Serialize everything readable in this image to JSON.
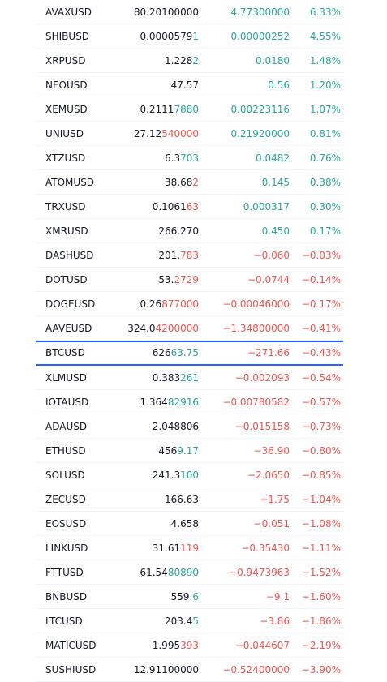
{
  "colors": {
    "up": "#26a69a",
    "down": "#ef5350",
    "selected_border": "#2962ff",
    "text": "#131722"
  },
  "selected_symbol": "BTCUSD",
  "rows": [
    {
      "symbol": "AVAXUSD",
      "last_base": "80.20100000",
      "last_hl": "",
      "last_dir": "",
      "change": "4.77300000",
      "change_pct": "6.33%",
      "dir": "pos"
    },
    {
      "symbol": "SHIBUSD",
      "last_base": "0.0000579",
      "last_hl": "1",
      "last_dir": "pos",
      "change": "0.00000252",
      "change_pct": "4.55%",
      "dir": "pos"
    },
    {
      "symbol": "XRPUSD",
      "last_base": "1.228",
      "last_hl": "2",
      "last_dir": "pos",
      "change": "0.0180",
      "change_pct": "1.48%",
      "dir": "pos"
    },
    {
      "symbol": "NEOUSD",
      "last_base": "47.57",
      "last_hl": "",
      "last_dir": "",
      "change": "0.56",
      "change_pct": "1.20%",
      "dir": "pos"
    },
    {
      "symbol": "XEMUSD",
      "last_base": "0.2111",
      "last_hl": "7880",
      "last_dir": "pos",
      "change": "0.00223116",
      "change_pct": "1.07%",
      "dir": "pos"
    },
    {
      "symbol": "UNIUSD",
      "last_base": "27.12",
      "last_hl": "540000",
      "last_dir": "neg",
      "change": "0.21920000",
      "change_pct": "0.81%",
      "dir": "pos"
    },
    {
      "symbol": "XTZUSD",
      "last_base": "6.3",
      "last_hl": "703",
      "last_dir": "pos",
      "change": "0.0482",
      "change_pct": "0.76%",
      "dir": "pos"
    },
    {
      "symbol": "ATOMUSD",
      "last_base": "38.68",
      "last_hl": "2",
      "last_dir": "neg",
      "change": "0.145",
      "change_pct": "0.38%",
      "dir": "pos"
    },
    {
      "symbol": "TRXUSD",
      "last_base": "0.1061",
      "last_hl": "63",
      "last_dir": "neg",
      "change": "0.000317",
      "change_pct": "0.30%",
      "dir": "pos"
    },
    {
      "symbol": "XMRUSD",
      "last_base": "266.270",
      "last_hl": "",
      "last_dir": "",
      "change": "0.450",
      "change_pct": "0.17%",
      "dir": "pos"
    },
    {
      "symbol": "DASHUSD",
      "last_base": "201.",
      "last_hl": "783",
      "last_dir": "neg",
      "change": "−0.060",
      "change_pct": "−0.03%",
      "dir": "neg"
    },
    {
      "symbol": "DOTUSD",
      "last_base": "53.",
      "last_hl": "2729",
      "last_dir": "neg",
      "change": "−0.0744",
      "change_pct": "−0.14%",
      "dir": "neg"
    },
    {
      "symbol": "DOGEUSD",
      "last_base": "0.26",
      "last_hl": "877000",
      "last_dir": "neg",
      "change": "−0.00046000",
      "change_pct": "−0.17%",
      "dir": "neg"
    },
    {
      "symbol": "AAVEUSD",
      "last_base": "324.0",
      "last_hl": "4200000",
      "last_dir": "neg",
      "change": "−1.34800000",
      "change_pct": "−0.41%",
      "dir": "neg"
    },
    {
      "symbol": "BTCUSD",
      "last_base": "626",
      "last_hl": "63.75",
      "last_dir": "pos",
      "change": "−271.66",
      "change_pct": "−0.43%",
      "dir": "neg",
      "selected": true
    },
    {
      "symbol": "XLMUSD",
      "last_base": "0.383",
      "last_hl": "261",
      "last_dir": "pos",
      "change": "−0.002093",
      "change_pct": "−0.54%",
      "dir": "neg"
    },
    {
      "symbol": "IOTAUSD",
      "last_base": "1.364",
      "last_hl": "82916",
      "last_dir": "pos",
      "change": "−0.00780582",
      "change_pct": "−0.57%",
      "dir": "neg"
    },
    {
      "symbol": "ADAUSD",
      "last_base": "2.048806",
      "last_hl": "",
      "last_dir": "",
      "change": "−0.015158",
      "change_pct": "−0.73%",
      "dir": "neg"
    },
    {
      "symbol": "ETHUSD",
      "last_base": "456",
      "last_hl": "9.17",
      "last_dir": "pos",
      "change": "−36.90",
      "change_pct": "−0.80%",
      "dir": "neg"
    },
    {
      "symbol": "SOLUSD",
      "last_base": "241.3",
      "last_hl": "100",
      "last_dir": "pos",
      "change": "−2.0650",
      "change_pct": "−0.85%",
      "dir": "neg"
    },
    {
      "symbol": "ZECUSD",
      "last_base": "166.63",
      "last_hl": "",
      "last_dir": "",
      "change": "−1.75",
      "change_pct": "−1.04%",
      "dir": "neg"
    },
    {
      "symbol": "EOSUSD",
      "last_base": "4.658",
      "last_hl": "",
      "last_dir": "",
      "change": "−0.051",
      "change_pct": "−1.08%",
      "dir": "neg"
    },
    {
      "symbol": "LINKUSD",
      "last_base": "31.61",
      "last_hl": "119",
      "last_dir": "neg",
      "change": "−0.35430",
      "change_pct": "−1.11%",
      "dir": "neg"
    },
    {
      "symbol": "FTTUSD",
      "last_base": "61.54",
      "last_hl": "80890",
      "last_dir": "pos",
      "change": "−0.9473963",
      "change_pct": "−1.52%",
      "dir": "neg"
    },
    {
      "symbol": "BNBUSD",
      "last_base": "559.",
      "last_hl": "6",
      "last_dir": "pos",
      "change": "−9.1",
      "change_pct": "−1.60%",
      "dir": "neg"
    },
    {
      "symbol": "LTCUSD",
      "last_base": "203.4",
      "last_hl": "5",
      "last_dir": "pos",
      "change": "−3.86",
      "change_pct": "−1.86%",
      "dir": "neg"
    },
    {
      "symbol": "MATICUSD",
      "last_base": "1.995",
      "last_hl": "393",
      "last_dir": "neg",
      "change": "−0.044607",
      "change_pct": "−2.19%",
      "dir": "neg"
    },
    {
      "symbol": "SUSHIUSD",
      "last_base": "12.91100000",
      "last_hl": "",
      "last_dir": "",
      "change": "−0.52400000",
      "change_pct": "−3.90%",
      "dir": "neg"
    }
  ]
}
